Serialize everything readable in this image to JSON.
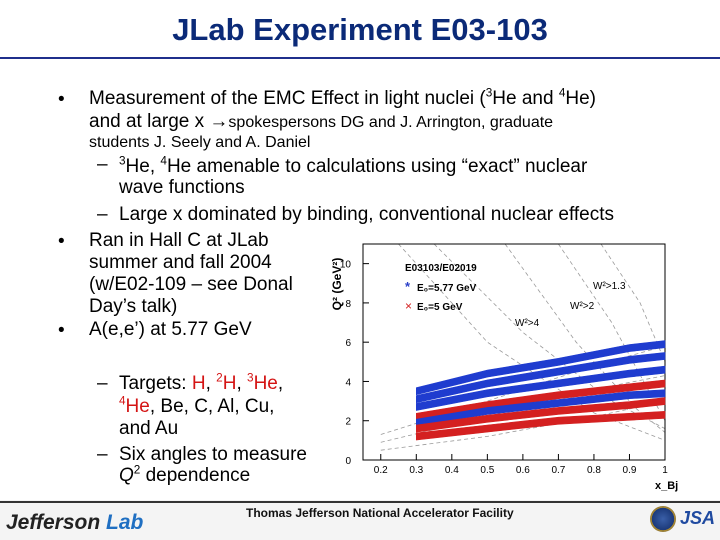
{
  "slide": {
    "title": "JLab Experiment E03-103",
    "bullet1": {
      "line1_a": "Measurement of the EMC Effect in light nuclei (",
      "line1_sup1": "3",
      "line1_b": "He and ",
      "line1_sup2": "4",
      "line1_c": "He)",
      "line2_a": "and at large x ",
      "line2_arrow": "→",
      "line2_b": "spokespersons DG and J. Arrington, graduate",
      "line3": "students J. Seely and A. Daniel"
    },
    "sub1": {
      "dash": "–",
      "sup1": "3",
      "text_a": "He, ",
      "sup2": "4",
      "text_b": "He amenable to calculations using “exact” nuclear",
      "line2": "wave functions"
    },
    "sub2": {
      "dash": "–",
      "text": "Large x dominated by binding, conventional nuclear effects"
    },
    "bullet2": {
      "lines": [
        "Ran in Hall C at JLab",
        "summer and fall 2004",
        "(w/E02-109 – see Donal",
        "Day’s talk)"
      ]
    },
    "bullet3": {
      "text": "A(e,e’) at 5.77 GeV"
    },
    "sub3": {
      "dash": "–",
      "label": "Targets: ",
      "t_h": "H",
      "t_2h_sup": "2",
      "t_2h": "H",
      "t_3he_sup": "3",
      "t_3he": "He",
      "t_4he_sup": "4",
      "t_4he": "He",
      "rest": ", Be, C, Al, Cu,",
      "line3": "and Au",
      "comma": ", "
    },
    "sub4": {
      "dash": "–",
      "line1": "Six angles to measure",
      "q": "Q",
      "q_sup": "2",
      "line2": " dependence"
    },
    "bullet_glyph": "•"
  },
  "chart_data": {
    "type": "scatter",
    "title": "E03103/E02019",
    "xlabel": "x_Bj",
    "ylabel": "Q² (GeV²)",
    "xlim": [
      0.15,
      1.0
    ],
    "ylim": [
      0,
      11
    ],
    "x_ticks": [
      "0.2",
      "0.3",
      "0.4",
      "0.5",
      "0.6",
      "0.7",
      "0.8",
      "0.9",
      "1"
    ],
    "y_ticks": [
      "0",
      "2",
      "4",
      "6",
      "8",
      "10"
    ],
    "legend": [
      {
        "name": "E₀=5.77 GeV",
        "color": "#2a3fc8",
        "marker": "asterisk"
      },
      {
        "name": "E₀=5 GeV",
        "color": "#d42020",
        "marker": "x"
      }
    ],
    "annotations": [
      "W²>1.3",
      "W²>2",
      "W²>4"
    ],
    "series": [
      {
        "name": "E₀=5.77 GeV",
        "color": "#1f3ccf",
        "points": [
          [
            0.3,
            3.5
          ],
          [
            0.5,
            4.4
          ],
          [
            0.7,
            5.0
          ],
          [
            0.9,
            5.7
          ],
          [
            1.0,
            5.9
          ]
        ]
      },
      {
        "name": "E₀=5.77 GeV",
        "color": "#1f3ccf",
        "points": [
          [
            0.3,
            3.1
          ],
          [
            0.5,
            3.9
          ],
          [
            0.7,
            4.5
          ],
          [
            0.9,
            5.1
          ],
          [
            1.0,
            5.3
          ]
        ]
      },
      {
        "name": "E₀=5.77 GeV",
        "color": "#1f3ccf",
        "points": [
          [
            0.3,
            2.7
          ],
          [
            0.5,
            3.4
          ],
          [
            0.7,
            3.9
          ],
          [
            0.9,
            4.4
          ],
          [
            1.0,
            4.6
          ]
        ]
      },
      {
        "name": "E₀=5 GeV",
        "color": "#d42020",
        "points": [
          [
            0.3,
            2.2
          ],
          [
            0.5,
            2.8
          ],
          [
            0.7,
            3.3
          ],
          [
            0.9,
            3.7
          ],
          [
            1.0,
            3.9
          ]
        ]
      },
      {
        "name": "E₀=5.77 GeV",
        "color": "#1f3ccf",
        "points": [
          [
            0.3,
            1.9
          ],
          [
            0.5,
            2.5
          ],
          [
            0.7,
            2.9
          ],
          [
            0.9,
            3.3
          ],
          [
            1.0,
            3.4
          ]
        ]
      },
      {
        "name": "E₀=5 GeV",
        "color": "#d42020",
        "points": [
          [
            0.3,
            1.6
          ],
          [
            0.5,
            2.1
          ],
          [
            0.7,
            2.5
          ],
          [
            0.9,
            2.8
          ],
          [
            1.0,
            3.0
          ]
        ]
      },
      {
        "name": "E₀=5 GeV",
        "color": "#d42020",
        "points": [
          [
            0.3,
            1.2
          ],
          [
            0.5,
            1.6
          ],
          [
            0.7,
            2.0
          ],
          [
            0.9,
            2.2
          ],
          [
            1.0,
            2.3
          ]
        ]
      }
    ]
  },
  "footer": {
    "logo_text_a": "Jefferson ",
    "logo_text_b": "Lab",
    "lab_name": "Thomas Jefferson National Accelerator Facility",
    "jsa": "JSA"
  }
}
